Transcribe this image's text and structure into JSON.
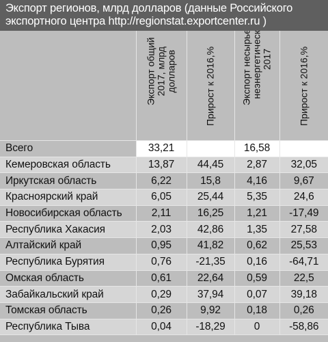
{
  "title": {
    "line1": "Экспорт регионов, млрд долларов (данные Российского",
    "line2": "экспортного центра http://regionstat.exportcenter.ru )"
  },
  "columns": [
    "",
    "Экспорт общий\n2017, млрд\nдолларов",
    "Прирост к 2016,%",
    "Экспорт несырьевой\nнеэнергетический\n2017",
    "Прирост к 2016,%"
  ],
  "rows": [
    [
      "Всего",
      "33,21",
      "",
      "16,58",
      ""
    ],
    [
      "Кемеровская область",
      "13,87",
      "44,45",
      "2,87",
      "32,05"
    ],
    [
      "Иркутская область",
      "6,22",
      "15,8",
      "4,16",
      "9,67"
    ],
    [
      "Красноярский край",
      "6,05",
      "25,44",
      "5,35",
      "24,6"
    ],
    [
      "Новосибирская область",
      "2,11",
      "16,25",
      "1,21",
      "-17,49"
    ],
    [
      "Республика Хакасия",
      "2,03",
      "42,86",
      "1,35",
      "27,58"
    ],
    [
      "Алтайский край",
      "0,95",
      "41,82",
      "0,62",
      "25,53"
    ],
    [
      "Республика Бурятия",
      "0,76",
      "-21,35",
      "0,16",
      "-64,71"
    ],
    [
      "Омская область",
      "0,61",
      "22,64",
      "0,59",
      "22,5"
    ],
    [
      "Забайкальский край",
      "0,29",
      "37,94",
      "0,07",
      "39,18"
    ],
    [
      "Томская область",
      "0,26",
      "9,92",
      "0,18",
      "0,26"
    ],
    [
      "Республика Тыва",
      "0,04",
      "-18,29",
      "0",
      "-58,86"
    ]
  ],
  "colors": {
    "header_bg": "#5f5f5f",
    "row_dark": "#bdbdbd",
    "row_light": "#d6d6d6",
    "total_highlight": "#ffffff"
  }
}
